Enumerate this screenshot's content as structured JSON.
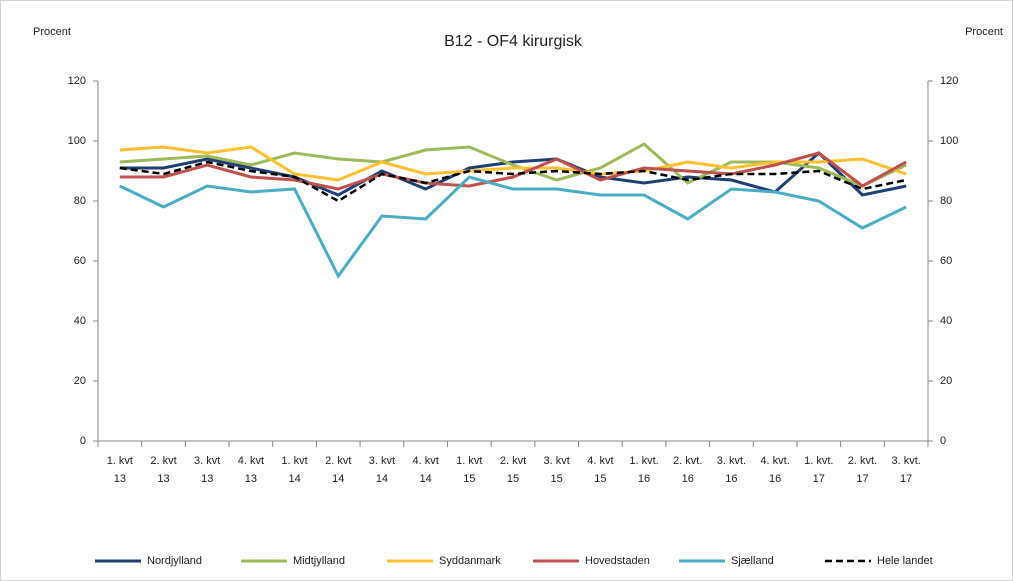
{
  "chart_data": {
    "type": "line",
    "title": "B12 - OF4 kirurgisk",
    "y_label": "Procent",
    "y2_label": "Procent",
    "categories": [
      [
        "1. kvt",
        "13"
      ],
      [
        "2. kvt",
        "13"
      ],
      [
        "3. kvt",
        "13"
      ],
      [
        "4. kvt",
        "13"
      ],
      [
        "1. kvt",
        "14"
      ],
      [
        "2. kvt",
        "14"
      ],
      [
        "3. kvt",
        "14"
      ],
      [
        "4. kvt",
        "14"
      ],
      [
        "1. kvt",
        "15"
      ],
      [
        "2. kvt",
        "15"
      ],
      [
        "3. kvt",
        "15"
      ],
      [
        "4. kvt",
        "15"
      ],
      [
        "1. kvt.",
        "16"
      ],
      [
        "2. kvt.",
        "16"
      ],
      [
        "3. kvt.",
        "16"
      ],
      [
        "4. kvt.",
        "16"
      ],
      [
        "1. kvt.",
        "17"
      ],
      [
        "2. kvt.",
        "17"
      ],
      [
        "3. kvt.",
        "17"
      ]
    ],
    "series": [
      {
        "name": "Nordjylland",
        "color": "#1f3f73",
        "values": [
          91,
          91,
          94,
          91,
          88,
          82,
          90,
          84,
          91,
          93,
          94,
          88,
          86,
          88,
          87,
          83,
          96,
          82,
          85
        ]
      },
      {
        "name": "Midtjylland",
        "color": "#9bbb59",
        "values": [
          93,
          94,
          95,
          92,
          96,
          94,
          93,
          97,
          98,
          92,
          87,
          91,
          99,
          86,
          93,
          93,
          91,
          85,
          92
        ]
      },
      {
        "name": "Syddanmark",
        "color": "#fdc02f",
        "values": [
          97,
          98,
          96,
          98,
          89,
          87,
          93,
          89,
          90,
          91,
          91,
          89,
          90,
          93,
          91,
          93,
          93,
          94,
          89
        ]
      },
      {
        "name": "Hovedstaden",
        "color": "#c0504d",
        "values": [
          88,
          88,
          92,
          88,
          87,
          84,
          89,
          86,
          85,
          88,
          94,
          87,
          91,
          90,
          89,
          92,
          96,
          85,
          93
        ]
      },
      {
        "name": "Sjælland",
        "color": "#4bacc6",
        "values": [
          85,
          78,
          85,
          83,
          84,
          55,
          75,
          74,
          88,
          84,
          84,
          82,
          82,
          74,
          84,
          83,
          80,
          71,
          78
        ]
      },
      {
        "name": "Hele landet",
        "color": "#000000",
        "dashed": true,
        "values": [
          91,
          89,
          93,
          90,
          88,
          80,
          89,
          86,
          90,
          89,
          90,
          89,
          90,
          87,
          89,
          89,
          90,
          84,
          87
        ]
      }
    ],
    "ylim": [
      0,
      120
    ],
    "yticks": [
      0,
      20,
      40,
      60,
      80,
      100,
      120
    ],
    "y2lim": [
      0,
      120
    ],
    "y2ticks": [
      0,
      20,
      40,
      60,
      80,
      100,
      120
    ],
    "legend": "bottom"
  }
}
